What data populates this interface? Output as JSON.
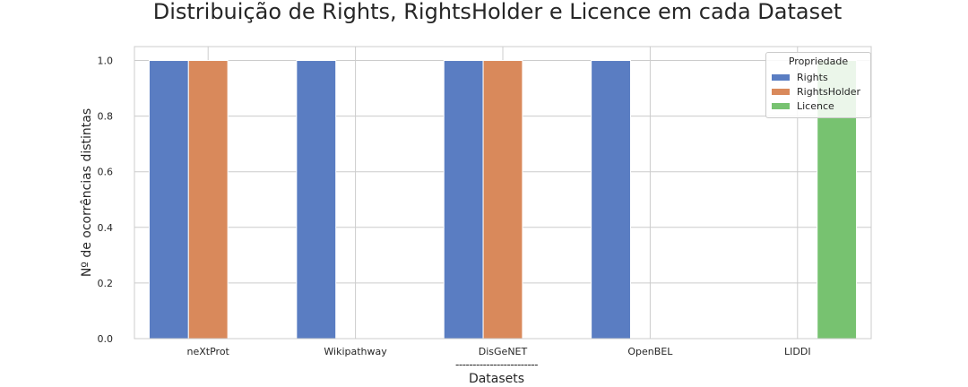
{
  "chart_data": {
    "type": "bar",
    "title": "Distribuição de Rights, RightsHolder e Licence em cada Dataset",
    "xlabel_rule": "------------------------",
    "xlabel": "Datasets",
    "ylabel": "Nº de ocorrências distintas",
    "categories": [
      "neXtProt",
      "Wikipathway",
      "DisGeNET",
      "OpenBEL",
      "LIDDI"
    ],
    "series": [
      {
        "name": "Rights",
        "color": "#5a7dc2",
        "values": [
          1,
          1,
          1,
          1,
          0
        ]
      },
      {
        "name": "RightsHolder",
        "color": "#d9895b",
        "values": [
          1,
          0,
          1,
          0,
          0
        ]
      },
      {
        "name": "Licence",
        "color": "#77c270",
        "values": [
          0,
          0,
          0,
          0,
          1
        ]
      }
    ],
    "ylim": [
      0,
      1.05
    ],
    "yticks": [
      "0.0",
      "0.2",
      "0.4",
      "0.6",
      "0.8",
      "1.0"
    ],
    "grid": true,
    "legend": {
      "title": "Propriedade",
      "placement": "top-right"
    }
  }
}
